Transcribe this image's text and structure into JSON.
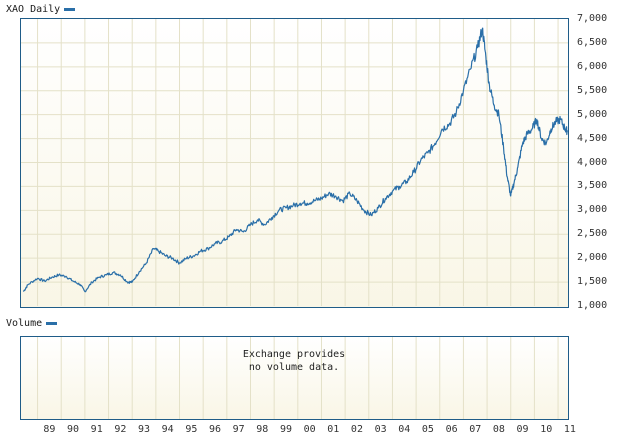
{
  "price_panel": {
    "legend_label": "XAO Daily",
    "series_color": "#2a6fa8"
  },
  "volume_panel": {
    "legend_label": "Volume",
    "message_line1": "Exchange provides",
    "message_line2": "no volume data."
  },
  "chart_data": {
    "type": "line",
    "series": [
      {
        "name": "XAO Daily",
        "x": [
          1988.4,
          1988.6,
          1989.0,
          1989.3,
          1989.6,
          1989.9,
          1990.2,
          1990.5,
          1990.8,
          1991.0,
          1991.3,
          1991.6,
          1991.9,
          1992.2,
          1992.5,
          1992.8,
          1993.0,
          1993.3,
          1993.6,
          1993.9,
          1994.1,
          1994.4,
          1994.7,
          1995.0,
          1995.3,
          1995.6,
          1995.9,
          1996.2,
          1996.5,
          1996.8,
          1997.1,
          1997.4,
          1997.7,
          1998.0,
          1998.3,
          1998.6,
          1998.9,
          1999.2,
          1999.5,
          1999.8,
          2000.1,
          2000.4,
          2000.7,
          2001.0,
          2001.3,
          2001.6,
          2001.9,
          2002.2,
          2002.5,
          2002.8,
          2003.1,
          2003.4,
          2003.7,
          2004.0,
          2004.3,
          2004.6,
          2004.9,
          2005.2,
          2005.5,
          2005.8,
          2006.1,
          2006.4,
          2006.7,
          2007.0,
          2007.3,
          2007.6,
          2007.8,
          2007.95,
          2008.1,
          2008.3,
          2008.5,
          2008.7,
          2008.85,
          2009.0,
          2009.15,
          2009.3,
          2009.5,
          2009.7,
          2009.9,
          2010.1,
          2010.3,
          2010.5,
          2010.7,
          2010.9,
          2011.1,
          2011.3,
          2011.4
        ],
        "y": [
          1300,
          1450,
          1580,
          1520,
          1600,
          1650,
          1620,
          1520,
          1450,
          1300,
          1500,
          1600,
          1650,
          1700,
          1650,
          1500,
          1500,
          1720,
          1900,
          2200,
          2150,
          2050,
          2000,
          1900,
          2000,
          2050,
          2150,
          2200,
          2300,
          2350,
          2450,
          2600,
          2550,
          2700,
          2800,
          2700,
          2850,
          3000,
          3050,
          3100,
          3150,
          3150,
          3200,
          3250,
          3350,
          3300,
          3200,
          3350,
          3200,
          3000,
          2900,
          3050,
          3250,
          3400,
          3500,
          3600,
          3800,
          4050,
          4200,
          4400,
          4700,
          4800,
          5050,
          5500,
          5950,
          6400,
          6800,
          6200,
          5600,
          5200,
          5000,
          4300,
          3700,
          3300,
          3600,
          3900,
          4400,
          4600,
          4700,
          4900,
          4500,
          4400,
          4700,
          4850,
          4900,
          4700,
          4650
        ]
      }
    ],
    "x_ticks": [
      "89",
      "90",
      "91",
      "92",
      "93",
      "94",
      "95",
      "96",
      "97",
      "98",
      "99",
      "00",
      "01",
      "02",
      "03",
      "04",
      "05",
      "06",
      "07",
      "08",
      "09",
      "10",
      "11"
    ],
    "y_ticks": [
      "1,000",
      "1,500",
      "2,000",
      "2,500",
      "3,000",
      "3,500",
      "4,000",
      "4,500",
      "5,000",
      "5,500",
      "6,000",
      "6,500",
      "7,000"
    ],
    "ylim": [
      1000,
      7000
    ],
    "xlim": [
      1988.3,
      2011.42
    ],
    "grid": true,
    "y_axis_position": "right"
  }
}
